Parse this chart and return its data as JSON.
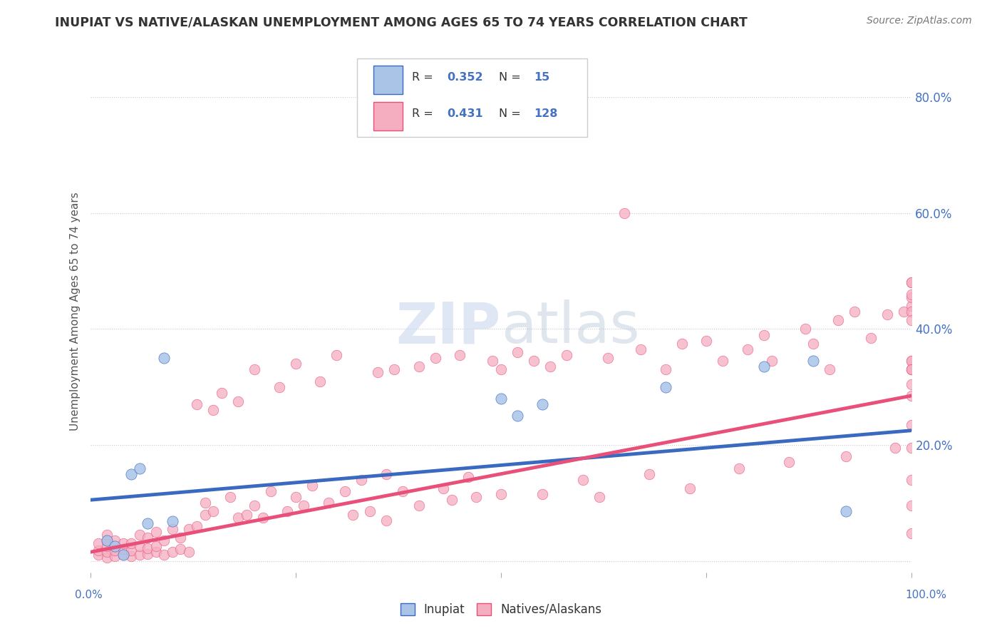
{
  "title": "INUPIAT VS NATIVE/ALASKAN UNEMPLOYMENT AMONG AGES 65 TO 74 YEARS CORRELATION CHART",
  "source": "Source: ZipAtlas.com",
  "ylabel": "Unemployment Among Ages 65 to 74 years",
  "xlim": [
    0,
    1
  ],
  "ylim": [
    -0.02,
    0.88
  ],
  "yticks": [
    0.0,
    0.2,
    0.4,
    0.6,
    0.8
  ],
  "ytick_labels": [
    "",
    "20.0%",
    "40.0%",
    "60.0%",
    "80.0%"
  ],
  "inupiat_R": 0.352,
  "inupiat_N": 15,
  "native_R": 0.431,
  "native_N": 128,
  "inupiat_color": "#aac4e8",
  "native_color": "#f5adc0",
  "inupiat_line_color": "#3a6abf",
  "native_line_color": "#e8507a",
  "watermark_color": "#ccd8ee",
  "background_color": "#ffffff",
  "grid_color": "#c8c8d8",
  "blue_line_x0": 0.0,
  "blue_line_y0": 0.105,
  "blue_line_x1": 1.0,
  "blue_line_y1": 0.225,
  "pink_line_x0": 0.0,
  "pink_line_y0": 0.015,
  "pink_line_x1": 1.0,
  "pink_line_y1": 0.285,
  "inupiat_x": [
    0.02,
    0.03,
    0.04,
    0.05,
    0.06,
    0.07,
    0.09,
    0.1,
    0.5,
    0.52,
    0.55,
    0.7,
    0.82,
    0.88,
    0.92
  ],
  "inupiat_y": [
    0.035,
    0.025,
    0.01,
    0.15,
    0.16,
    0.065,
    0.35,
    0.068,
    0.28,
    0.25,
    0.27,
    0.3,
    0.335,
    0.345,
    0.085
  ],
  "native_x": [
    0.01,
    0.01,
    0.01,
    0.02,
    0.02,
    0.02,
    0.02,
    0.02,
    0.03,
    0.03,
    0.03,
    0.04,
    0.04,
    0.04,
    0.05,
    0.05,
    0.05,
    0.06,
    0.06,
    0.06,
    0.07,
    0.07,
    0.07,
    0.08,
    0.08,
    0.08,
    0.09,
    0.09,
    0.1,
    0.1,
    0.11,
    0.11,
    0.12,
    0.12,
    0.13,
    0.13,
    0.14,
    0.14,
    0.15,
    0.15,
    0.16,
    0.17,
    0.18,
    0.18,
    0.19,
    0.2,
    0.2,
    0.21,
    0.22,
    0.23,
    0.24,
    0.25,
    0.25,
    0.26,
    0.27,
    0.28,
    0.29,
    0.3,
    0.31,
    0.32,
    0.33,
    0.34,
    0.35,
    0.36,
    0.36,
    0.37,
    0.38,
    0.4,
    0.4,
    0.42,
    0.43,
    0.44,
    0.45,
    0.46,
    0.47,
    0.49,
    0.5,
    0.5,
    0.52,
    0.54,
    0.55,
    0.56,
    0.58,
    0.6,
    0.62,
    0.63,
    0.65,
    0.67,
    0.68,
    0.7,
    0.72,
    0.73,
    0.75,
    0.77,
    0.79,
    0.8,
    0.82,
    0.83,
    0.85,
    0.87,
    0.88,
    0.9,
    0.91,
    0.92,
    0.93,
    0.95,
    0.97,
    0.98,
    0.99,
    1.0,
    1.0,
    1.0,
    1.0,
    1.0,
    1.0,
    1.0,
    1.0,
    1.0,
    1.0,
    1.0,
    1.0,
    1.0,
    1.0,
    1.0,
    1.0,
    1.0,
    1.0,
    1.0
  ],
  "native_y": [
    0.01,
    0.018,
    0.03,
    0.005,
    0.015,
    0.025,
    0.035,
    0.045,
    0.008,
    0.018,
    0.035,
    0.01,
    0.02,
    0.03,
    0.008,
    0.018,
    0.03,
    0.01,
    0.025,
    0.045,
    0.012,
    0.022,
    0.04,
    0.015,
    0.025,
    0.05,
    0.01,
    0.035,
    0.015,
    0.055,
    0.02,
    0.04,
    0.015,
    0.055,
    0.27,
    0.06,
    0.08,
    0.1,
    0.26,
    0.085,
    0.29,
    0.11,
    0.075,
    0.275,
    0.08,
    0.33,
    0.095,
    0.075,
    0.12,
    0.3,
    0.085,
    0.34,
    0.11,
    0.095,
    0.13,
    0.31,
    0.1,
    0.355,
    0.12,
    0.08,
    0.14,
    0.085,
    0.325,
    0.15,
    0.07,
    0.33,
    0.12,
    0.335,
    0.095,
    0.35,
    0.125,
    0.105,
    0.355,
    0.145,
    0.11,
    0.345,
    0.33,
    0.115,
    0.36,
    0.345,
    0.115,
    0.335,
    0.355,
    0.14,
    0.11,
    0.35,
    0.6,
    0.365,
    0.15,
    0.33,
    0.375,
    0.125,
    0.38,
    0.345,
    0.16,
    0.365,
    0.39,
    0.345,
    0.17,
    0.4,
    0.375,
    0.33,
    0.415,
    0.18,
    0.43,
    0.385,
    0.425,
    0.195,
    0.43,
    0.345,
    0.44,
    0.48,
    0.33,
    0.14,
    0.195,
    0.235,
    0.285,
    0.095,
    0.048,
    0.305,
    0.345,
    0.43,
    0.33,
    0.415,
    0.455,
    0.46,
    0.33,
    0.48
  ]
}
